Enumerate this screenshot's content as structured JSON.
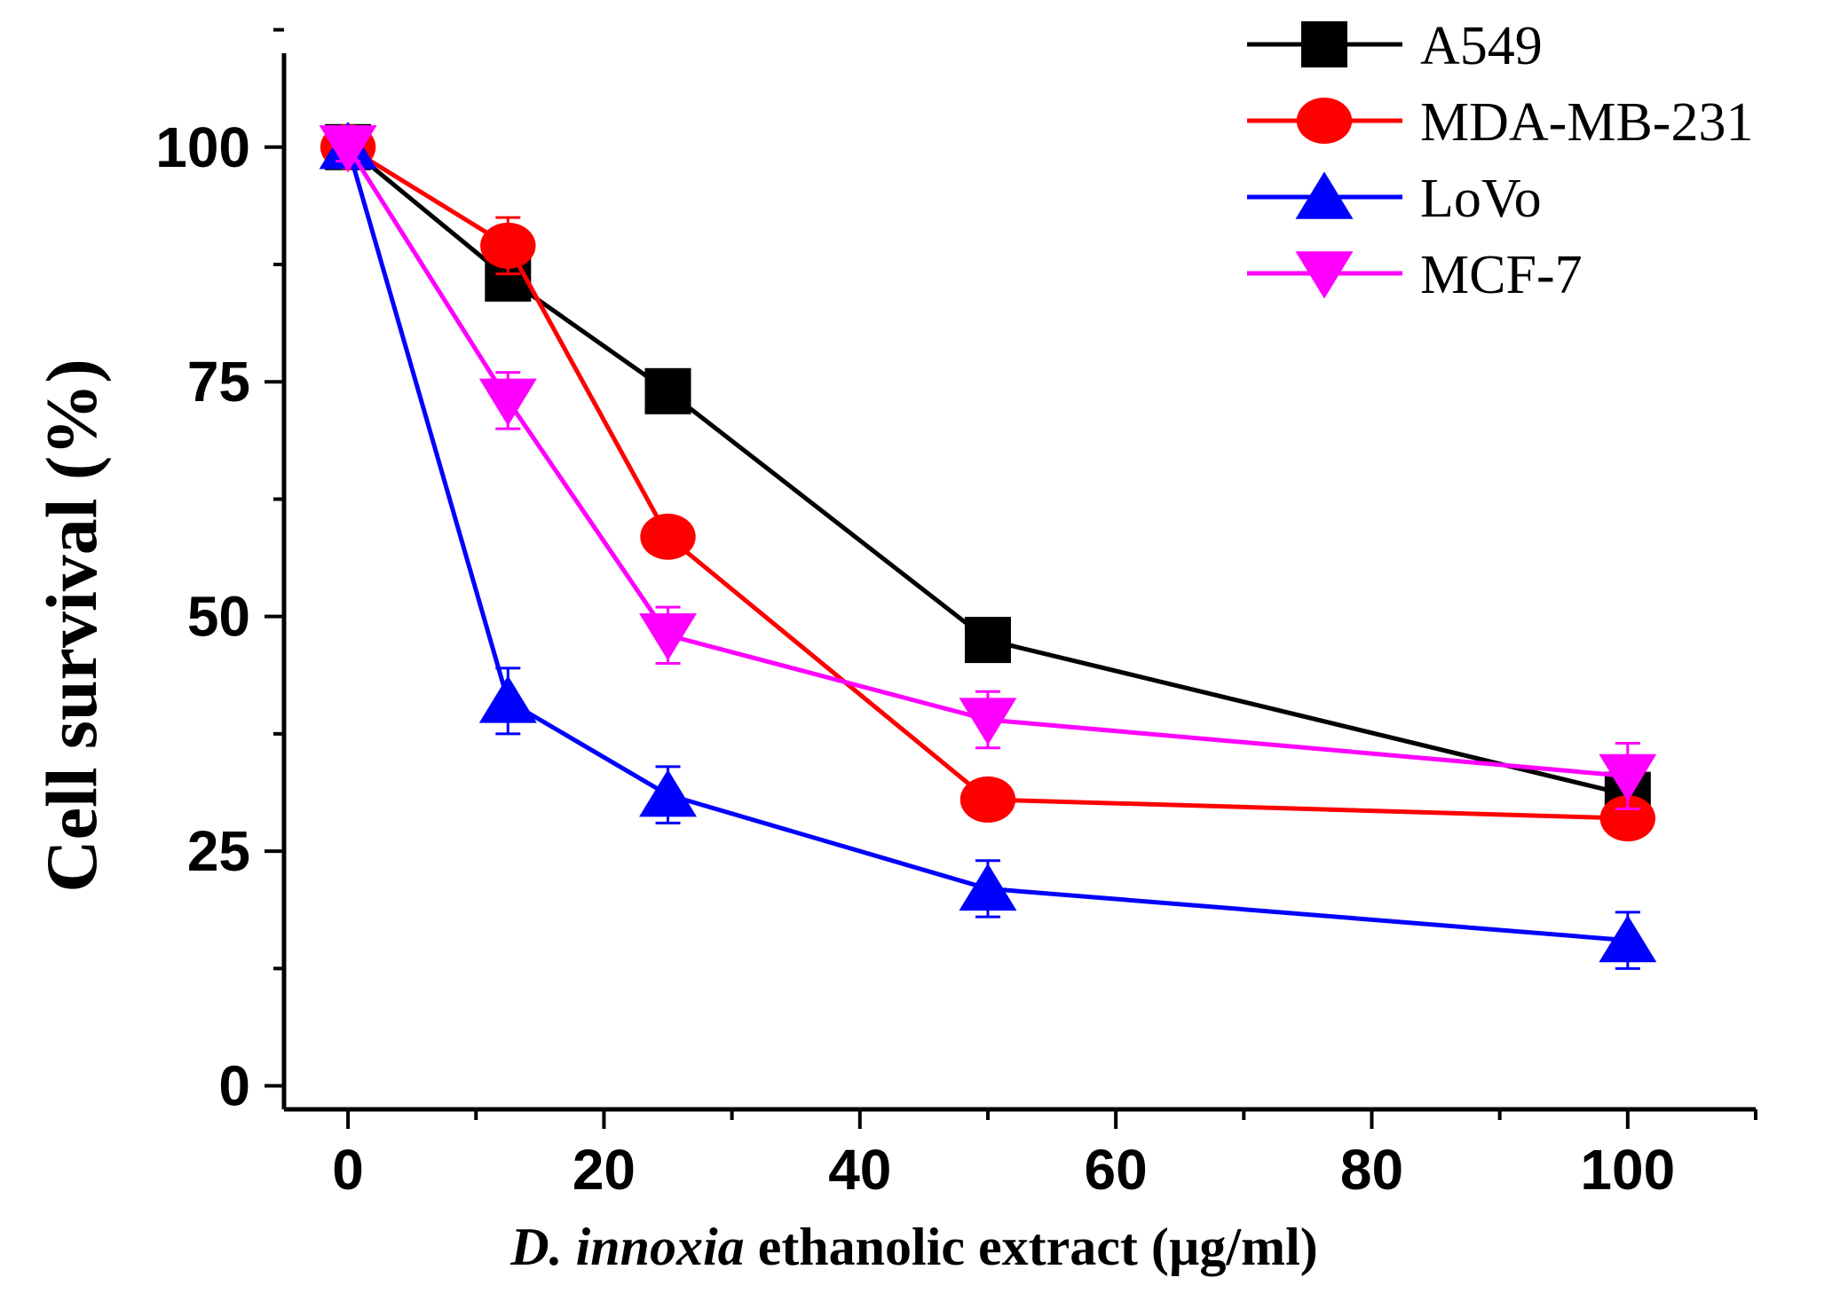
{
  "chart_data": {
    "type": "line",
    "title": "",
    "xlabel": {
      "italic": "D. innoxia",
      "rest": " ethanolic extract (µg/ml)"
    },
    "ylabel": "Cell survival (%)",
    "x": [
      0,
      12.5,
      25,
      50,
      100
    ],
    "x_positions": [
      0,
      12.5,
      25,
      50,
      100
    ],
    "xlim": [
      -5,
      110
    ],
    "ylim": [
      -2.5,
      110
    ],
    "xticks": [
      0,
      20,
      40,
      60,
      80,
      100
    ],
    "xtick_labels": [
      "0",
      "20",
      "40",
      "60",
      "80",
      "100"
    ],
    "yticks": [
      0,
      25,
      50,
      75,
      100
    ],
    "ytick_labels": [
      "0",
      "25",
      "50",
      "75",
      "100"
    ],
    "legend_position": "top-right",
    "series": [
      {
        "name": "A549",
        "color": "#000000",
        "marker": "square",
        "values": [
          100,
          86,
          74,
          47.5,
          31
        ],
        "errors": [
          1.5,
          2,
          1.5,
          1.5,
          2
        ]
      },
      {
        "name": "MDA-MB-231",
        "color": "#ff0000",
        "marker": "circle",
        "values": [
          100,
          89.5,
          58.5,
          30.5,
          28.5
        ],
        "errors": [
          1.5,
          3,
          1.5,
          1,
          1.5
        ]
      },
      {
        "name": "LoVo",
        "color": "#0000ff",
        "marker": "triangle-up",
        "values": [
          100,
          41,
          31,
          21,
          15.5
        ],
        "errors": [
          1.5,
          3.5,
          3,
          3,
          3
        ]
      },
      {
        "name": "MCF-7",
        "color": "#ff00ff",
        "marker": "triangle-down",
        "values": [
          100,
          73,
          48,
          39,
          33
        ],
        "errors": [
          1.5,
          3,
          3,
          3,
          3.5
        ]
      }
    ]
  }
}
